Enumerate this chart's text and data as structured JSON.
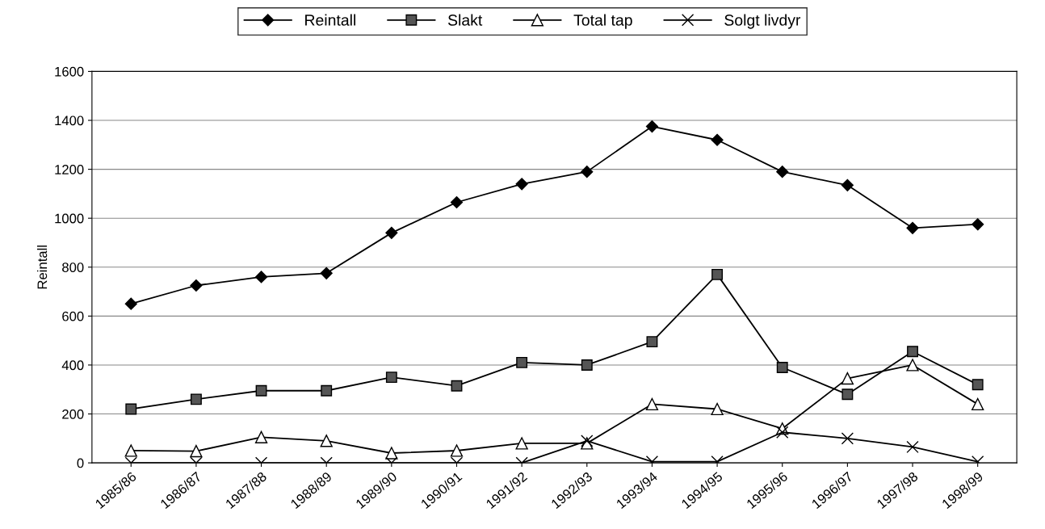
{
  "chart_data": {
    "type": "line",
    "ylabel": "Reintall",
    "categories": [
      "1985/86",
      "1986/87",
      "1987/88",
      "1988/89",
      "1989/90",
      "1990/91",
      "1991/92",
      "1992/93",
      "1993/94",
      "1994/95",
      "1995/96",
      "1996/97",
      "1997/98",
      "1998/99"
    ],
    "series": [
      {
        "name": "Reintall",
        "color": "#000000",
        "marker": "diamond",
        "values": [
          650,
          725,
          760,
          775,
          940,
          1065,
          1140,
          1190,
          1375,
          1320,
          1190,
          1135,
          960,
          975
        ]
      },
      {
        "name": "Slakt",
        "color": "#000000",
        "marker": "square",
        "values": [
          220,
          260,
          295,
          295,
          350,
          315,
          410,
          400,
          495,
          770,
          390,
          280,
          455,
          320
        ]
      },
      {
        "name": "Total tap",
        "color": "#000000",
        "marker": "triangle",
        "values": [
          50,
          48,
          105,
          90,
          40,
          50,
          80,
          80,
          240,
          220,
          140,
          345,
          400,
          240
        ]
      },
      {
        "name": "Solgt livdyr",
        "color": "#000000",
        "marker": "cross",
        "values": [
          0,
          0,
          0,
          0,
          0,
          0,
          0,
          90,
          5,
          5,
          125,
          100,
          65,
          5
        ]
      }
    ],
    "ylim": [
      0,
      1600
    ],
    "yticks": [
      0,
      200,
      400,
      600,
      800,
      1000,
      1200,
      1400,
      1600
    ],
    "grid": "y",
    "legend": "top",
    "line_style": "solid"
  }
}
